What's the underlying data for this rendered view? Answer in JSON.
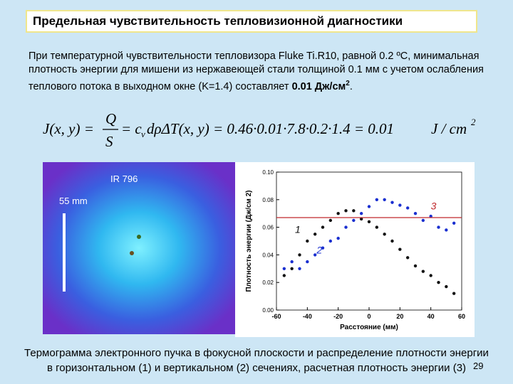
{
  "title": "Предельная чувствительность тепловизионной диагностики",
  "paragraph": {
    "text": "При температурной чувствительности тепловизора Fluke Ti.R10, равной 0.2 ºС, минимальная плотность энергии для мишени из нержавеющей стали толщиной 0.1 мм с учетом ослабления теплового потока в выходном окне (K=1.4) составляет ",
    "bold": "0.01 Дж/см",
    "bold_sup": "2",
    "end": "."
  },
  "formula": {
    "lhs": "J(x, y) =",
    "num": "Q",
    "den": "S",
    "mid": "= c",
    "sub": "v",
    "rest": "dρΔT(x, y) = 0.46·0.01·7.8·0.2·1.4 = 0.01",
    "unit": "J / cm",
    "unit_sup": "2"
  },
  "thermogram": {
    "label": "IR 796",
    "scale": "55 mm"
  },
  "chart_data": {
    "type": "scatter",
    "xlabel": "Расстояние (мм)",
    "ylabel": "Плотность энергии (Дж/см 2)",
    "xlim": [
      -60,
      60
    ],
    "xticks": [
      -60,
      -40,
      -20,
      0,
      20,
      40,
      60
    ],
    "ylim": [
      0,
      0.1
    ],
    "yticks": [
      {
        "value": 0,
        "label": "0.00"
      },
      {
        "value": 0.02,
        "label": "0.02"
      },
      {
        "value": 0.04,
        "label": "0.04"
      },
      {
        "value": 0.06,
        "label": "0.06"
      },
      {
        "value": 0.08,
        "label": "0.08"
      },
      {
        "value": 0.1,
        "label": "0.10"
      }
    ],
    "series": [
      {
        "name": "1",
        "color": "#111111",
        "x": [
          -55,
          -50,
          -45,
          -40,
          -35,
          -30,
          -25,
          -20,
          -15,
          -10,
          -5,
          0,
          5,
          10,
          15,
          20,
          25,
          30,
          35,
          40,
          45,
          50,
          55
        ],
        "values": [
          0.025,
          0.03,
          0.04,
          0.05,
          0.055,
          0.06,
          0.065,
          0.07,
          0.072,
          0.072,
          0.066,
          0.064,
          0.06,
          0.055,
          0.05,
          0.044,
          0.038,
          0.032,
          0.028,
          0.025,
          0.02,
          0.017,
          0.012
        ]
      },
      {
        "name": "2",
        "color": "#1a2fd0",
        "x": [
          -55,
          -50,
          -45,
          -40,
          -35,
          -30,
          -25,
          -20,
          -15,
          -10,
          -5,
          0,
          5,
          10,
          15,
          20,
          25,
          30,
          35,
          40,
          45,
          50,
          55
        ],
        "values": [
          0.03,
          0.035,
          0.03,
          0.035,
          0.04,
          0.045,
          0.05,
          0.052,
          0.06,
          0.065,
          0.07,
          0.075,
          0.08,
          0.08,
          0.078,
          0.076,
          0.074,
          0.07,
          0.065,
          0.068,
          0.06,
          0.058,
          0.063
        ]
      },
      {
        "name": "3",
        "color": "#c0282c",
        "line": true,
        "x": [
          -60,
          60
        ],
        "values": [
          0.067,
          0.067
        ]
      }
    ]
  },
  "caption": [
    "Термограмма электронного пучка в фокусной плоскости и распределение плотности энергии",
    "в горизонтальном (1) и вертикальном (2) сечениях, расчетная плотность энергии (3)"
  ],
  "page_number": "29"
}
